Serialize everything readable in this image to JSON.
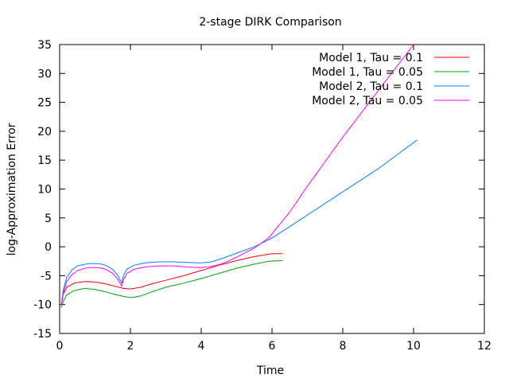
{
  "chart_data": {
    "type": "line",
    "title": "2-stage DIRK Comparison",
    "xlabel": "Time",
    "ylabel": "log-Approximation Error",
    "xlim": [
      0,
      12
    ],
    "ylim": [
      -15,
      35
    ],
    "xticks": [
      0,
      2,
      4,
      6,
      8,
      10,
      12
    ],
    "yticks": [
      -15,
      -10,
      -5,
      0,
      5,
      10,
      15,
      20,
      25,
      30,
      35
    ],
    "grid": false,
    "legend_position": "top-right",
    "series": [
      {
        "name": "Model 1, Tau = 0.1",
        "color": "#ff0000",
        "points": [
          [
            0.05,
            -10
          ],
          [
            0.1,
            -8.2
          ],
          [
            0.2,
            -7
          ],
          [
            0.4,
            -6.3
          ],
          [
            0.7,
            -6
          ],
          [
            1.0,
            -6.1
          ],
          [
            1.3,
            -6.4
          ],
          [
            1.6,
            -6.9
          ],
          [
            1.8,
            -7.2
          ],
          [
            2.0,
            -7.3
          ],
          [
            2.3,
            -7.0
          ],
          [
            2.6,
            -6.4
          ],
          [
            3.0,
            -5.8
          ],
          [
            3.5,
            -5.0
          ],
          [
            4.0,
            -4.1
          ],
          [
            4.5,
            -3.2
          ],
          [
            5.0,
            -2.4
          ],
          [
            5.5,
            -1.7
          ],
          [
            5.9,
            -1.3
          ],
          [
            6.0,
            -1.2
          ],
          [
            6.3,
            -1.2
          ]
        ]
      },
      {
        "name": "Model 1, Tau = 0.05",
        "color": "#00a000",
        "points": [
          [
            0.05,
            -10.5
          ],
          [
            0.1,
            -9.5
          ],
          [
            0.2,
            -8.3
          ],
          [
            0.4,
            -7.6
          ],
          [
            0.7,
            -7.2
          ],
          [
            1.0,
            -7.4
          ],
          [
            1.3,
            -7.8
          ],
          [
            1.6,
            -8.3
          ],
          [
            1.9,
            -8.7
          ],
          [
            2.05,
            -8.8
          ],
          [
            2.3,
            -8.5
          ],
          [
            2.6,
            -7.8
          ],
          [
            3.0,
            -7.0
          ],
          [
            3.5,
            -6.3
          ],
          [
            4.0,
            -5.5
          ],
          [
            4.5,
            -4.6
          ],
          [
            5.0,
            -3.7
          ],
          [
            5.5,
            -3.0
          ],
          [
            5.9,
            -2.5
          ],
          [
            6.3,
            -2.4
          ]
        ]
      },
      {
        "name": "Model 2, Tau = 0.1",
        "color": "#0080ff",
        "points": [
          [
            0.05,
            -10
          ],
          [
            0.1,
            -7.5
          ],
          [
            0.2,
            -5.3
          ],
          [
            0.35,
            -4
          ],
          [
            0.5,
            -3.3
          ],
          [
            0.8,
            -2.9
          ],
          [
            1.1,
            -2.9
          ],
          [
            1.3,
            -3.2
          ],
          [
            1.5,
            -3.9
          ],
          [
            1.65,
            -5.0
          ],
          [
            1.75,
            -6.3
          ],
          [
            1.8,
            -5.0
          ],
          [
            1.9,
            -3.9
          ],
          [
            2.1,
            -3.2
          ],
          [
            2.4,
            -2.8
          ],
          [
            2.8,
            -2.6
          ],
          [
            3.2,
            -2.6
          ],
          [
            3.6,
            -2.7
          ],
          [
            4.0,
            -2.8
          ],
          [
            4.3,
            -2.6
          ],
          [
            4.6,
            -2.0
          ],
          [
            5.0,
            -1.1
          ],
          [
            5.5,
            0
          ],
          [
            6.0,
            1.5
          ],
          [
            6.5,
            3.5
          ],
          [
            7.0,
            5.5
          ],
          [
            8.0,
            9.5
          ],
          [
            9.0,
            13.5
          ],
          [
            10.1,
            18.5
          ]
        ]
      },
      {
        "name": "Model 2, Tau = 0.05",
        "color": "#ff00ff",
        "points": [
          [
            0.05,
            -10
          ],
          [
            0.1,
            -8
          ],
          [
            0.2,
            -6
          ],
          [
            0.35,
            -4.8
          ],
          [
            0.5,
            -4.1
          ],
          [
            0.8,
            -3.6
          ],
          [
            1.1,
            -3.6
          ],
          [
            1.3,
            -3.9
          ],
          [
            1.5,
            -4.6
          ],
          [
            1.65,
            -5.7
          ],
          [
            1.75,
            -6.8
          ],
          [
            1.8,
            -5.7
          ],
          [
            1.9,
            -4.6
          ],
          [
            2.1,
            -3.9
          ],
          [
            2.4,
            -3.5
          ],
          [
            2.8,
            -3.3
          ],
          [
            3.2,
            -3.3
          ],
          [
            3.6,
            -3.5
          ],
          [
            4.0,
            -3.6
          ],
          [
            4.3,
            -3.4
          ],
          [
            4.6,
            -2.9
          ],
          [
            5.0,
            -1.8
          ],
          [
            5.5,
            -0.2
          ],
          [
            5.9,
            1.5
          ],
          [
            6.5,
            6
          ],
          [
            7.0,
            10.5
          ],
          [
            8.0,
            19
          ],
          [
            9.0,
            27
          ],
          [
            10.0,
            35
          ]
        ]
      }
    ]
  }
}
